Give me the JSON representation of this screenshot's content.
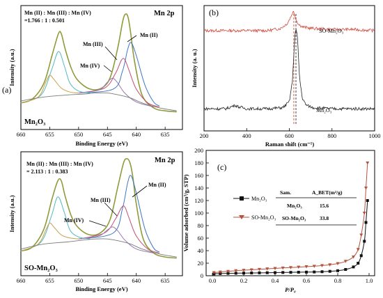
{
  "chart_data": [
    {
      "panel_label": "(a)",
      "type": "line",
      "title": "Mn 2p",
      "sample": "Mn₂O₃",
      "ratio_header": "Mn (II) : Mn (III) : Mn (IV)",
      "ratio_values": "=1.766 : 1 : 0.501",
      "peak_labels": [
        "Mn (II)",
        "Mn (III)",
        "Mn (IV)"
      ],
      "xlabel": "Binding Energy (eV)",
      "ylabel": "Intensity (a.u.)",
      "xlim": [
        660,
        632
      ],
      "x_ticks": [
        660,
        655,
        650,
        645,
        640,
        635
      ],
      "series": [
        {
          "role": "envelope",
          "color": "#8f9a3a",
          "x": [
            660,
            658,
            656,
            654.6,
            653.5,
            653,
            652.3,
            651.2,
            650,
            648,
            646,
            644.5,
            643.2,
            642.3,
            641.8,
            641.4,
            641,
            640.3,
            639,
            637,
            635,
            633
          ],
          "y": [
            0.1,
            0.14,
            0.3,
            0.58,
            0.8,
            0.8,
            0.64,
            0.44,
            0.32,
            0.24,
            0.25,
            0.36,
            0.66,
            0.94,
            1.0,
            0.96,
            0.82,
            0.52,
            0.18,
            0.05,
            0.02,
            0.01
          ]
        },
        {
          "role": "Mn (II)",
          "color": "#3c77c4",
          "x": [
            650,
            644,
            642.4,
            641.5,
            640.9,
            640,
            638.5,
            637,
            636
          ],
          "y": [
            0.2,
            0.24,
            0.42,
            0.64,
            0.71,
            0.58,
            0.28,
            0.11,
            0.07
          ]
        },
        {
          "role": "Mn (III)",
          "color": "#c44e6d",
          "x": [
            650,
            645.5,
            643.6,
            642.6,
            642,
            641.2,
            640,
            638,
            636
          ],
          "y": [
            0.2,
            0.25,
            0.4,
            0.53,
            0.54,
            0.42,
            0.24,
            0.1,
            0.06
          ]
        },
        {
          "role": "Mn (IV)",
          "color": "#9b78b3",
          "x": [
            650,
            646.5,
            645,
            644.1,
            643.2,
            642,
            640,
            637
          ],
          "y": [
            0.2,
            0.23,
            0.31,
            0.35,
            0.3,
            0.2,
            0.11,
            0.06
          ]
        },
        {
          "role": "component-3/2",
          "color": "#54b8c1",
          "x": [
            660,
            656.5,
            654.7,
            653.5,
            652.5,
            651.5,
            650,
            648
          ],
          "y": [
            0.1,
            0.18,
            0.43,
            0.62,
            0.48,
            0.3,
            0.22,
            0.2
          ]
        },
        {
          "role": "component-1/2",
          "color": "#c9a04a",
          "x": [
            660,
            657,
            655.6,
            655,
            654.3,
            653,
            651.5,
            650
          ],
          "y": [
            0.1,
            0.16,
            0.32,
            0.38,
            0.34,
            0.25,
            0.21,
            0.2
          ]
        },
        {
          "role": "background",
          "color": "#7a7a7a",
          "x": [
            660,
            656,
            652,
            649,
            647,
            645,
            643,
            641,
            639,
            636,
            633
          ],
          "y": [
            0.12,
            0.16,
            0.18,
            0.19,
            0.2,
            0.2,
            0.18,
            0.15,
            0.1,
            0.05,
            0.02
          ]
        }
      ]
    },
    {
      "panel_label": "(b)",
      "type": "line",
      "xlabel": "Raman shift (cm⁻¹)",
      "ylabel": "Intensity (a. u.)",
      "xlim": [
        200,
        1000
      ],
      "x_ticks": [
        200,
        400,
        600,
        800,
        1000
      ],
      "dashed_lines": [
        621,
        631
      ],
      "series": [
        {
          "name": "SO-Mn₂O₃",
          "color": "#d2463c",
          "x": [
            200,
            300,
            400,
            500,
            560,
            590,
            605,
            615,
            620,
            625,
            632,
            645,
            665,
            700,
            800,
            900,
            1000
          ],
          "y": [
            0.8,
            0.8,
            0.8,
            0.8,
            0.82,
            0.86,
            0.91,
            0.95,
            0.96,
            0.94,
            0.89,
            0.85,
            0.83,
            0.82,
            0.81,
            0.81,
            0.8
          ]
        },
        {
          "name": "Mn₂O₃",
          "color": "#222222",
          "x": [
            200,
            300,
            325,
            345,
            365,
            400,
            500,
            570,
            600,
            615,
            625,
            631,
            638,
            648,
            662,
            680,
            710,
            800,
            900,
            1000
          ],
          "y": [
            0.14,
            0.14,
            0.155,
            0.17,
            0.155,
            0.14,
            0.14,
            0.15,
            0.2,
            0.38,
            0.74,
            0.82,
            0.74,
            0.4,
            0.22,
            0.17,
            0.15,
            0.14,
            0.14,
            0.14
          ]
        }
      ]
    },
    {
      "panel_label": "(a)",
      "type": "line",
      "title": "Mn 2p",
      "sample": "SO-Mn₂O₃",
      "ratio_header": "Mn (II) : Mn (III) : Mn (IV)",
      "ratio_values": "= 2.113 : 1 : 0.383",
      "peak_labels": [
        "Mn (II)",
        "Mn (III)",
        "Mn (IV)"
      ],
      "xlabel": "Binding Energy (eV)",
      "ylabel": "Intensity (a.u.)",
      "xlim": [
        660,
        632
      ],
      "x_ticks": [
        660,
        655,
        650,
        645,
        640,
        635
      ],
      "series": [
        {
          "role": "envelope",
          "color": "#8f9a3a",
          "x": [
            660,
            658,
            656,
            654.6,
            653.6,
            653,
            652.3,
            651.2,
            650,
            648,
            646,
            644.5,
            643.2,
            642.2,
            641.6,
            641.1,
            640.6,
            640,
            638.8,
            637,
            635,
            633
          ],
          "y": [
            0.08,
            0.12,
            0.3,
            0.6,
            0.78,
            0.78,
            0.62,
            0.42,
            0.31,
            0.24,
            0.27,
            0.4,
            0.72,
            0.96,
            1.0,
            0.96,
            0.82,
            0.55,
            0.2,
            0.06,
            0.02,
            0.01
          ]
        },
        {
          "role": "Mn (II)",
          "color": "#3c77c4",
          "x": [
            650,
            644,
            642.4,
            641.5,
            640.9,
            640,
            638.5,
            637,
            636
          ],
          "y": [
            0.2,
            0.26,
            0.5,
            0.76,
            0.83,
            0.66,
            0.3,
            0.11,
            0.07
          ]
        },
        {
          "role": "Mn (III)",
          "color": "#c44e6d",
          "x": [
            650,
            645.5,
            643.6,
            642.6,
            642,
            641.2,
            640,
            638,
            636
          ],
          "y": [
            0.2,
            0.26,
            0.4,
            0.51,
            0.52,
            0.4,
            0.23,
            0.1,
            0.06
          ]
        },
        {
          "role": "Mn (IV)",
          "color": "#9b78b3",
          "x": [
            650,
            646.5,
            645,
            644.1,
            643.2,
            642,
            640,
            637
          ],
          "y": [
            0.2,
            0.23,
            0.29,
            0.32,
            0.28,
            0.19,
            0.1,
            0.06
          ]
        },
        {
          "role": "component-3/2",
          "color": "#54b8c1",
          "x": [
            660,
            656.5,
            654.7,
            653.6,
            652.5,
            651.5,
            650,
            648
          ],
          "y": [
            0.08,
            0.17,
            0.43,
            0.62,
            0.47,
            0.29,
            0.22,
            0.2
          ]
        },
        {
          "role": "component-1/2",
          "color": "#c9a04a",
          "x": [
            660,
            657,
            655.6,
            655,
            654.3,
            653,
            651.5,
            650
          ],
          "y": [
            0.08,
            0.15,
            0.3,
            0.36,
            0.32,
            0.24,
            0.21,
            0.2
          ]
        },
        {
          "role": "background",
          "color": "#7a7a7a",
          "x": [
            660,
            656,
            652,
            649,
            647,
            645,
            643,
            641,
            639,
            636,
            633
          ],
          "y": [
            0.1,
            0.15,
            0.17,
            0.19,
            0.2,
            0.2,
            0.18,
            0.15,
            0.1,
            0.05,
            0.02
          ]
        }
      ]
    },
    {
      "panel_label": "(c)",
      "type": "line",
      "xlabel": "P/P₀",
      "ylabel": "Volume adsorbed (cm³/g, STP)",
      "xlim": [
        0,
        1.0
      ],
      "ylim": [
        0,
        200
      ],
      "x_ticks": [
        0.0,
        0.2,
        0.4,
        0.6,
        0.8,
        1.0
      ],
      "y_ticks": [
        0,
        20,
        40,
        60,
        80,
        100,
        120,
        140,
        160,
        180,
        200
      ],
      "series": [
        {
          "name": "Mn₂O₃",
          "color": "#111111",
          "marker": "square",
          "x": [
            0.01,
            0.05,
            0.1,
            0.15,
            0.2,
            0.25,
            0.3,
            0.35,
            0.4,
            0.45,
            0.5,
            0.55,
            0.6,
            0.65,
            0.7,
            0.75,
            0.8,
            0.85,
            0.9,
            0.93,
            0.95,
            0.97,
            0.98,
            0.99
          ],
          "y": [
            3,
            3.5,
            3.8,
            4,
            4.2,
            4.4,
            4.6,
            4.8,
            5,
            5.2,
            5.4,
            5.6,
            5.8,
            6,
            6.4,
            7,
            8,
            10,
            14,
            20,
            32,
            55,
            85,
            120
          ]
        },
        {
          "name": "SO-Mn₂O₃",
          "color": "#b5533c",
          "marker": "triangle-down",
          "x": [
            0.01,
            0.05,
            0.1,
            0.15,
            0.2,
            0.25,
            0.3,
            0.35,
            0.4,
            0.45,
            0.5,
            0.55,
            0.6,
            0.65,
            0.7,
            0.75,
            0.8,
            0.85,
            0.9,
            0.93,
            0.95,
            0.97,
            0.98,
            0.99
          ],
          "y": [
            5,
            6,
            7,
            8,
            8.8,
            9.5,
            10.2,
            11,
            11.7,
            12.4,
            13,
            13.7,
            14.4,
            15.2,
            16.2,
            17.5,
            19.5,
            23,
            30,
            42,
            65,
            100,
            140,
            180
          ]
        }
      ],
      "table": {
        "header": [
          "Sam.",
          "A_BET(m²/g)"
        ],
        "rows": [
          [
            "Mn₂O₃",
            "15.6"
          ],
          [
            "SO-Mn₂O₃",
            "33.8"
          ]
        ]
      }
    }
  ]
}
